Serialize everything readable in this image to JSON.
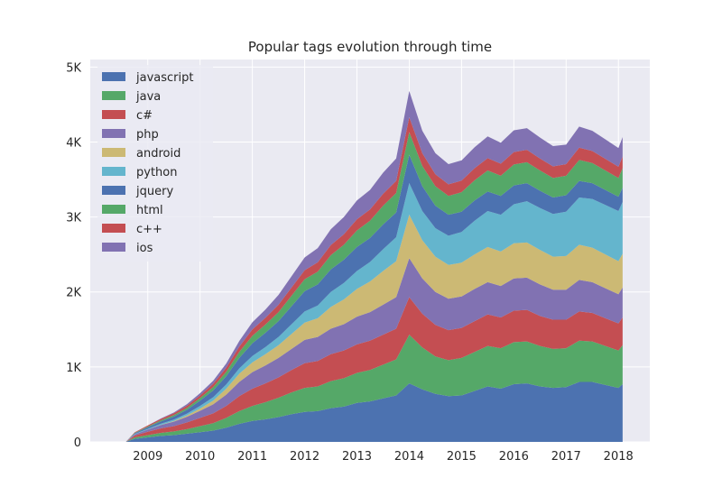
{
  "chart_data": {
    "type": "area",
    "stacked": true,
    "title": "Popular tags evolution through time",
    "xlabel": "",
    "ylabel": "",
    "x": [
      2008.58,
      2008.75,
      2009.0,
      2009.25,
      2009.5,
      2009.75,
      2010.0,
      2010.25,
      2010.5,
      2010.75,
      2011.0,
      2011.25,
      2011.5,
      2011.75,
      2012.0,
      2012.25,
      2012.5,
      2012.75,
      2013.0,
      2013.25,
      2013.5,
      2013.75,
      2014.0,
      2014.25,
      2014.5,
      2014.75,
      2015.0,
      2015.25,
      2015.5,
      2015.75,
      2016.0,
      2016.25,
      2016.5,
      2016.75,
      2017.0,
      2017.25,
      2017.5,
      2017.75,
      2018.0,
      2018.08
    ],
    "xlim": [
      2007.9,
      2018.6
    ],
    "ylim": [
      0,
      5100
    ],
    "xticks": [
      2009,
      2010,
      2011,
      2012,
      2013,
      2014,
      2015,
      2016,
      2017,
      2018
    ],
    "xtick_labels": [
      "2009",
      "2010",
      "2011",
      "2012",
      "2013",
      "2014",
      "2015",
      "2016",
      "2017",
      "2018"
    ],
    "yticks": [
      0,
      1000,
      2000,
      3000,
      4000,
      5000
    ],
    "ytick_labels": [
      "0",
      "1K",
      "2K",
      "3K",
      "4K",
      "5K"
    ],
    "grid": true,
    "legend_position": "top-left",
    "series": [
      {
        "name": "javascript",
        "color": "#4c72b0",
        "values": [
          0,
          40,
          60,
          80,
          90,
          110,
          130,
          150,
          190,
          240,
          280,
          300,
          330,
          370,
          400,
          410,
          450,
          470,
          520,
          540,
          580,
          620,
          780,
          700,
          640,
          610,
          620,
          680,
          740,
          710,
          770,
          780,
          740,
          720,
          730,
          800,
          800,
          760,
          720,
          770
        ]
      },
      {
        "name": "java",
        "color": "#55a868",
        "values": [
          0,
          20,
          30,
          40,
          50,
          60,
          80,
          100,
          130,
          170,
          200,
          230,
          260,
          290,
          320,
          330,
          360,
          380,
          400,
          420,
          450,
          480,
          650,
          560,
          500,
          480,
          500,
          520,
          540,
          540,
          560,
          560,
          540,
          520,
          520,
          550,
          540,
          520,
          500,
          520
        ]
      },
      {
        "name": "c#",
        "color": "#c44e52",
        "values": [
          0,
          25,
          45,
          60,
          70,
          90,
          110,
          130,
          160,
          200,
          230,
          250,
          270,
          300,
          330,
          340,
          360,
          370,
          380,
          390,
          400,
          410,
          500,
          450,
          420,
          400,
          400,
          410,
          420,
          410,
          420,
          420,
          400,
          390,
          380,
          390,
          380,
          370,
          360,
          370
        ]
      },
      {
        "name": "php",
        "color": "#8172b2",
        "values": [
          0,
          15,
          30,
          45,
          60,
          75,
          95,
          120,
          150,
          190,
          220,
          240,
          260,
          280,
          310,
          320,
          340,
          350,
          370,
          380,
          400,
          420,
          520,
          470,
          440,
          420,
          420,
          430,
          430,
          420,
          430,
          430,
          420,
          400,
          400,
          420,
          410,
          400,
          390,
          400
        ]
      },
      {
        "name": "android",
        "color": "#ccb974",
        "values": [
          0,
          0,
          0,
          2,
          8,
          18,
          30,
          50,
          80,
          110,
          130,
          150,
          170,
          200,
          230,
          250,
          290,
          330,
          370,
          410,
          450,
          480,
          580,
          510,
          470,
          450,
          450,
          460,
          470,
          460,
          470,
          470,
          460,
          440,
          450,
          470,
          460,
          450,
          440,
          450
        ]
      },
      {
        "name": "python",
        "color": "#64b5cd",
        "values": [
          0,
          5,
          10,
          15,
          20,
          25,
          35,
          45,
          55,
          70,
          85,
          95,
          110,
          130,
          150,
          170,
          200,
          220,
          240,
          260,
          290,
          320,
          420,
          390,
          380,
          390,
          410,
          450,
          480,
          490,
          520,
          550,
          560,
          570,
          590,
          630,
          650,
          660,
          670,
          690
        ]
      },
      {
        "name": "jquery",
        "color": "#4c72b0",
        "values": [
          0,
          10,
          20,
          30,
          40,
          50,
          70,
          90,
          110,
          140,
          170,
          190,
          210,
          240,
          270,
          280,
          300,
          310,
          320,
          320,
          330,
          330,
          380,
          330,
          300,
          280,
          270,
          270,
          260,
          250,
          250,
          240,
          230,
          220,
          220,
          220,
          210,
          200,
          190,
          190
        ]
      },
      {
        "name": "html",
        "color": "#55a868",
        "values": [
          0,
          5,
          10,
          15,
          20,
          25,
          35,
          45,
          60,
          80,
          100,
          110,
          120,
          140,
          160,
          170,
          190,
          200,
          220,
          230,
          250,
          260,
          300,
          270,
          260,
          250,
          260,
          270,
          280,
          270,
          280,
          280,
          270,
          260,
          260,
          280,
          270,
          260,
          250,
          260
        ]
      },
      {
        "name": "c++",
        "color": "#c44e52",
        "values": [
          0,
          8,
          15,
          20,
          25,
          30,
          35,
          45,
          55,
          70,
          85,
          90,
          100,
          110,
          120,
          125,
          135,
          140,
          150,
          150,
          160,
          160,
          200,
          170,
          160,
          155,
          155,
          160,
          165,
          160,
          165,
          165,
          160,
          155,
          155,
          165,
          160,
          155,
          150,
          155
        ]
      },
      {
        "name": "ios",
        "color": "#8172b2",
        "values": [
          0,
          0,
          0,
          5,
          10,
          20,
          30,
          40,
          55,
          75,
          95,
          110,
          130,
          150,
          170,
          190,
          210,
          230,
          250,
          260,
          280,
          300,
          350,
          300,
          280,
          270,
          270,
          280,
          290,
          280,
          290,
          290,
          280,
          270,
          260,
          280,
          270,
          260,
          250,
          260
        ]
      }
    ]
  }
}
